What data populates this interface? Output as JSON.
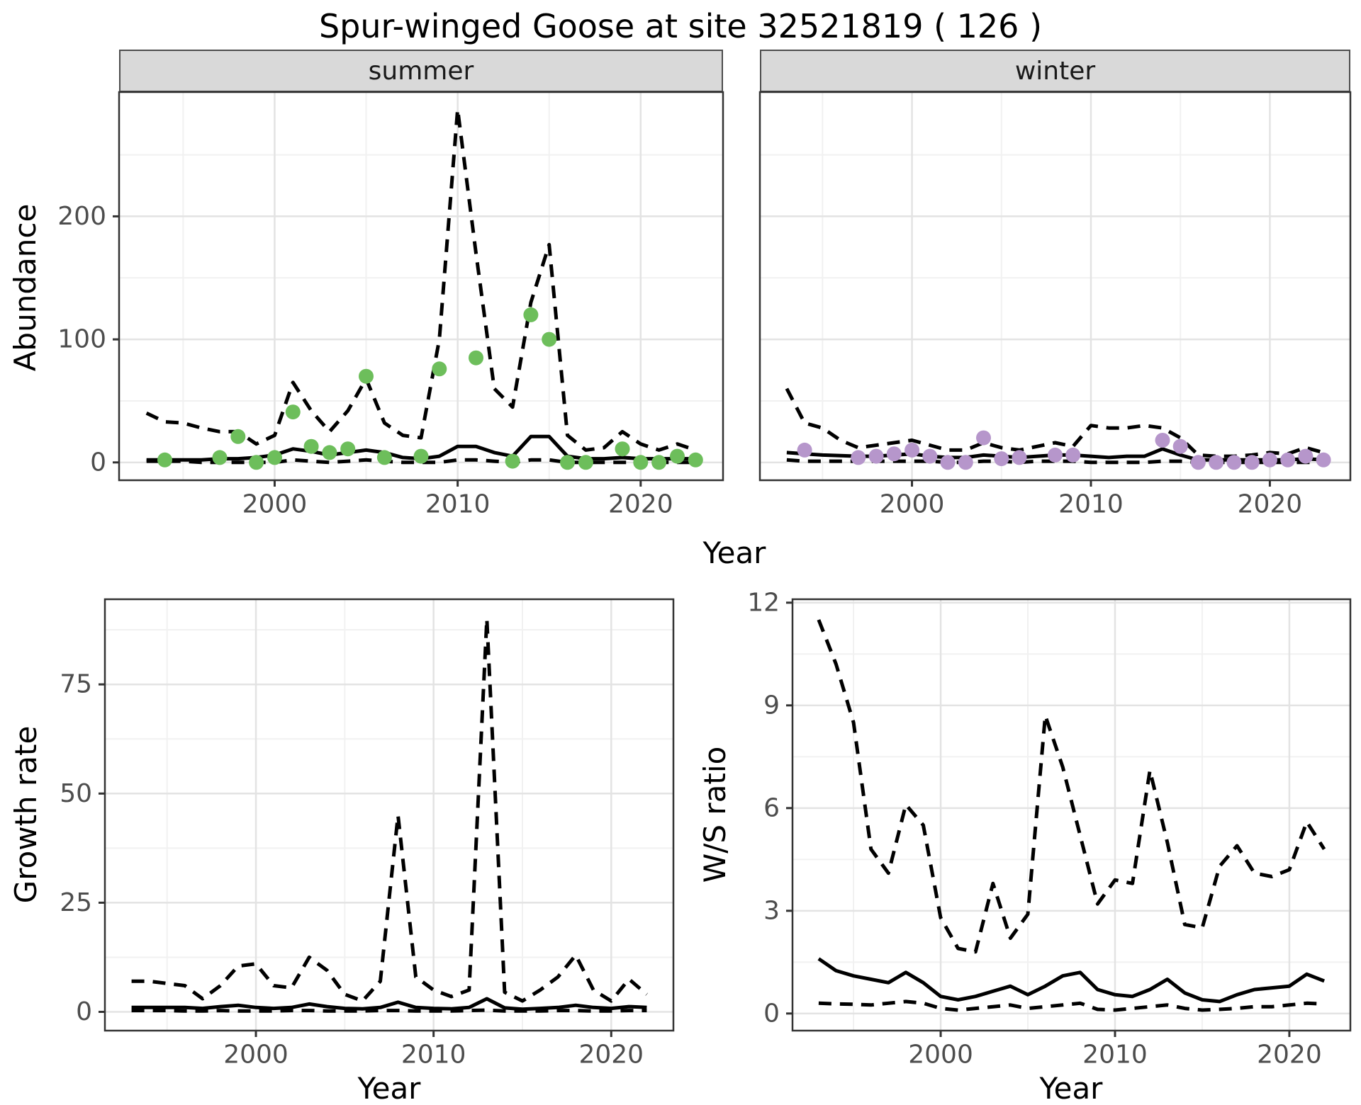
{
  "title": "Spur-winged Goose at site 32521819 ( 126 )",
  "facets": [
    {
      "label": "summer"
    },
    {
      "label": "winter"
    }
  ],
  "axis_labels": {
    "top_y": "Abundance",
    "top_x": "Year",
    "growth_y": "Growth rate",
    "growth_x": "Year",
    "ws_y": "W/S ratio",
    "ws_x": "Year"
  },
  "colors": {
    "summer_point": "#6dbe5b",
    "winter_point": "#b696cb",
    "line": "#000000",
    "strip_bg": "#d9d9d9",
    "panel_border": "#333333",
    "grid_major": "#e3e3e3",
    "grid_minor": "#f1f1f1",
    "tick_label": "#4d4d4d"
  },
  "chart_data": [
    {
      "id": "abundance_summer",
      "type": "line",
      "facet": "summer",
      "title": "Abundance vs Year, summer counts with model fit and 95% CI",
      "xlabel": "Year",
      "ylabel": "Abundance",
      "xlim": [
        1991.5,
        2024.5
      ],
      "ylim": [
        -14.5,
        301
      ],
      "x": [
        1993,
        1994,
        1995,
        1996,
        1997,
        1998,
        1999,
        2000,
        2001,
        2002,
        2003,
        2004,
        2005,
        2006,
        2007,
        2008,
        2009,
        2010,
        2011,
        2012,
        2013,
        2014,
        2015,
        2016,
        2017,
        2018,
        2019,
        2020,
        2021,
        2022,
        2023
      ],
      "series": [
        {
          "name": "ci_upper",
          "style": "dashed",
          "values": [
            40,
            33,
            32,
            28,
            25,
            25,
            15,
            22,
            65,
            42,
            25,
            42,
            68,
            32,
            22,
            20,
            100,
            287,
            170,
            60,
            45,
            130,
            177,
            22,
            10,
            12,
            25,
            15,
            10,
            15,
            10
          ]
        },
        {
          "name": "ci_lower",
          "style": "dashed",
          "values": [
            1,
            1,
            1,
            0,
            0,
            0,
            0,
            0,
            2,
            1,
            0,
            1,
            2,
            1,
            0,
            0,
            0,
            2,
            2,
            1,
            0,
            2,
            2,
            0,
            0,
            0,
            0,
            0,
            0,
            0,
            0
          ]
        },
        {
          "name": "median_fit",
          "style": "solid",
          "values": [
            2,
            2,
            2,
            2,
            3,
            3,
            4,
            6,
            11,
            9,
            6,
            8,
            10,
            8,
            4,
            3,
            5,
            13,
            13,
            8,
            5,
            21,
            21,
            5,
            3,
            3,
            4,
            3,
            3,
            3,
            3
          ]
        }
      ],
      "points": {
        "name": "observed_counts",
        "color_key": "summer_point",
        "x": [
          1994,
          1997,
          1998,
          1999,
          2000,
          2001,
          2002,
          2003,
          2004,
          2005,
          2006,
          2008,
          2009,
          2011,
          2013,
          2014,
          2015,
          2016,
          2017,
          2019,
          2020,
          2021,
          2022,
          2023
        ],
        "y": [
          2,
          4,
          21,
          0,
          4,
          41,
          13,
          8,
          11,
          70,
          4,
          5,
          76,
          85,
          1,
          120,
          100,
          0,
          0,
          11,
          0,
          0,
          5,
          2
        ]
      },
      "x_ticks": [
        {
          "v": 2000,
          "label": "2000"
        },
        {
          "v": 2010,
          "label": "2010"
        },
        {
          "v": 2020,
          "label": "2020"
        }
      ],
      "y_ticks": [
        {
          "v": 0,
          "label": "0"
        },
        {
          "v": 100,
          "label": "100"
        },
        {
          "v": 200,
          "label": "200"
        }
      ],
      "x_minor": [
        1995,
        2005,
        2015
      ],
      "y_minor": [
        50,
        150,
        250
      ]
    },
    {
      "id": "abundance_winter",
      "type": "line",
      "facet": "winter",
      "title": "Abundance vs Year, winter counts with model fit and 95% CI",
      "xlabel": "Year",
      "ylabel": "Abundance",
      "xlim": [
        1991.5,
        2024.5
      ],
      "ylim": [
        -14.5,
        301
      ],
      "x": [
        1993,
        1994,
        1995,
        1996,
        1997,
        1998,
        1999,
        2000,
        2001,
        2002,
        2003,
        2004,
        2005,
        2006,
        2007,
        2008,
        2009,
        2010,
        2011,
        2012,
        2013,
        2014,
        2015,
        2016,
        2017,
        2018,
        2019,
        2020,
        2021,
        2022,
        2023
      ],
      "series": [
        {
          "name": "ci_upper",
          "style": "dashed",
          "values": [
            60,
            32,
            28,
            18,
            12,
            14,
            16,
            18,
            14,
            10,
            10,
            16,
            12,
            10,
            13,
            16,
            13,
            30,
            28,
            28,
            30,
            28,
            20,
            6,
            5,
            5,
            6,
            8,
            7,
            12,
            8
          ]
        },
        {
          "name": "ci_lower",
          "style": "dashed",
          "values": [
            2,
            1,
            1,
            1,
            1,
            1,
            1,
            1,
            1,
            0,
            0,
            1,
            1,
            0,
            1,
            1,
            1,
            0,
            0,
            0,
            0,
            1,
            1,
            0,
            0,
            0,
            0,
            0,
            0,
            0,
            0
          ]
        },
        {
          "name": "median_fit",
          "style": "solid",
          "values": [
            8,
            7,
            6,
            5.5,
            5,
            5,
            6,
            7,
            5,
            4,
            4,
            6,
            5,
            4,
            5,
            6,
            6,
            5,
            4,
            5,
            5,
            11,
            6,
            2,
            2,
            2,
            2,
            2,
            2,
            3,
            2
          ]
        }
      ],
      "points": {
        "name": "observed_counts",
        "color_key": "winter_point",
        "x": [
          1994,
          1997,
          1998,
          1999,
          2000,
          2001,
          2002,
          2003,
          2004,
          2005,
          2006,
          2008,
          2009,
          2014,
          2015,
          2016,
          2017,
          2018,
          2019,
          2020,
          2021,
          2022,
          2023
        ],
        "y": [
          10,
          4,
          5,
          7,
          10,
          5,
          0,
          0,
          20,
          3,
          4,
          6,
          6,
          18,
          13,
          0,
          0,
          0,
          0,
          2,
          2,
          5,
          2
        ]
      },
      "x_ticks": [
        {
          "v": 2000,
          "label": "2000"
        },
        {
          "v": 2010,
          "label": "2010"
        },
        {
          "v": 2020,
          "label": "2020"
        }
      ],
      "y_ticks": [
        {
          "v": 0,
          "label": ""
        },
        {
          "v": 100,
          "label": ""
        },
        {
          "v": 200,
          "label": ""
        }
      ],
      "x_minor": [
        1995,
        2005,
        2015
      ],
      "y_minor": [
        50,
        150,
        250
      ]
    },
    {
      "id": "growth_rate",
      "type": "line",
      "title": "Growth rate vs Year with 95% CI",
      "xlabel": "Year",
      "ylabel": "Growth rate",
      "xlim": [
        1991.5,
        2023.5
      ],
      "ylim": [
        -4.3,
        94.5
      ],
      "x": [
        1993,
        1994,
        1995,
        1996,
        1997,
        1998,
        1999,
        2000,
        2001,
        2002,
        2003,
        2004,
        2005,
        2006,
        2007,
        2008,
        2009,
        2010,
        2011,
        2012,
        2013,
        2014,
        2015,
        2016,
        2017,
        2018,
        2019,
        2020,
        2021,
        2022
      ],
      "series": [
        {
          "name": "ci_upper",
          "style": "dashed",
          "values": [
            7,
            7,
            6.5,
            6,
            3,
            6,
            10.5,
            11,
            6,
            5.5,
            12.5,
            9.5,
            4,
            2.5,
            7,
            45,
            8,
            5,
            3.5,
            5,
            90,
            4.5,
            2.5,
            5,
            8,
            13,
            5,
            2.5,
            7.5,
            4
          ]
        },
        {
          "name": "ci_lower",
          "style": "dashed",
          "values": [
            0.3,
            0.3,
            0.3,
            0.2,
            0.2,
            0.3,
            0.2,
            0.2,
            0.2,
            0.3,
            0.3,
            0.2,
            0.2,
            0.2,
            0.3,
            0.3,
            0.2,
            0.2,
            0.2,
            0.3,
            0.4,
            0.2,
            0.2,
            0.2,
            0.3,
            0.3,
            0.2,
            0.2,
            0.3,
            0.3
          ]
        },
        {
          "name": "median_fit",
          "style": "solid",
          "values": [
            1,
            1,
            1,
            1,
            0.8,
            1.2,
            1.5,
            1,
            0.8,
            1,
            1.8,
            1.2,
            0.8,
            0.7,
            1,
            2.2,
            1,
            0.8,
            0.7,
            1,
            3,
            0.9,
            0.6,
            0.8,
            1,
            1.5,
            1,
            0.8,
            1.2,
            1
          ]
        }
      ],
      "points": null,
      "x_ticks": [
        {
          "v": 2000,
          "label": "2000"
        },
        {
          "v": 2010,
          "label": "2010"
        },
        {
          "v": 2020,
          "label": "2020"
        }
      ],
      "y_ticks": [
        {
          "v": 0,
          "label": "0"
        },
        {
          "v": 25,
          "label": "25"
        },
        {
          "v": 50,
          "label": "50"
        },
        {
          "v": 75,
          "label": "75"
        }
      ],
      "x_minor": [
        1995,
        2005,
        2015
      ],
      "y_minor": [
        12.5,
        37.5,
        62.5,
        87.5
      ]
    },
    {
      "id": "ws_ratio",
      "type": "line",
      "title": "Winter/Summer ratio vs Year with 95% CI",
      "xlabel": "Year",
      "ylabel": "W/S ratio",
      "xlim": [
        1991.5,
        2023.5
      ],
      "ylim": [
        -0.5,
        12.1
      ],
      "x": [
        1993,
        1994,
        1995,
        1996,
        1997,
        1998,
        1999,
        2000,
        2001,
        2002,
        2003,
        2004,
        2005,
        2006,
        2007,
        2008,
        2009,
        2010,
        2011,
        2012,
        2013,
        2014,
        2015,
        2016,
        2017,
        2018,
        2019,
        2020,
        2021,
        2022
      ],
      "series": [
        {
          "name": "ci_upper",
          "style": "dashed",
          "values": [
            11.5,
            10.2,
            8.5,
            4.8,
            4.1,
            6.1,
            5.5,
            2.8,
            1.9,
            1.8,
            3.8,
            2.2,
            2.9,
            8.7,
            7.2,
            5.2,
            3.2,
            3.9,
            3.8,
            7.1,
            5.0,
            2.6,
            2.5,
            4.3,
            4.9,
            4.1,
            4.0,
            4.2,
            5.6,
            4.8
          ]
        },
        {
          "name": "ci_lower",
          "style": "dashed",
          "values": [
            0.3,
            0.28,
            0.27,
            0.25,
            0.3,
            0.35,
            0.3,
            0.15,
            0.1,
            0.15,
            0.2,
            0.25,
            0.15,
            0.2,
            0.25,
            0.3,
            0.12,
            0.1,
            0.15,
            0.2,
            0.25,
            0.15,
            0.1,
            0.12,
            0.15,
            0.2,
            0.2,
            0.25,
            0.3,
            0.28
          ]
        },
        {
          "name": "median_fit",
          "style": "solid",
          "values": [
            1.6,
            1.25,
            1.1,
            1.0,
            0.9,
            1.2,
            0.9,
            0.5,
            0.4,
            0.5,
            0.65,
            0.8,
            0.55,
            0.8,
            1.1,
            1.2,
            0.7,
            0.55,
            0.5,
            0.7,
            1.0,
            0.6,
            0.4,
            0.35,
            0.55,
            0.7,
            0.75,
            0.8,
            1.15,
            0.95
          ]
        }
      ],
      "points": null,
      "x_ticks": [
        {
          "v": 2000,
          "label": "2000"
        },
        {
          "v": 2010,
          "label": "2010"
        },
        {
          "v": 2020,
          "label": "2020"
        }
      ],
      "y_ticks": [
        {
          "v": 0,
          "label": "0"
        },
        {
          "v": 3,
          "label": "3"
        },
        {
          "v": 6,
          "label": "6"
        },
        {
          "v": 9,
          "label": "9"
        },
        {
          "v": 12,
          "label": "12"
        }
      ],
      "x_minor": [
        1995,
        2005,
        2015
      ],
      "y_minor": [
        1.5,
        4.5,
        7.5,
        10.5
      ]
    }
  ]
}
